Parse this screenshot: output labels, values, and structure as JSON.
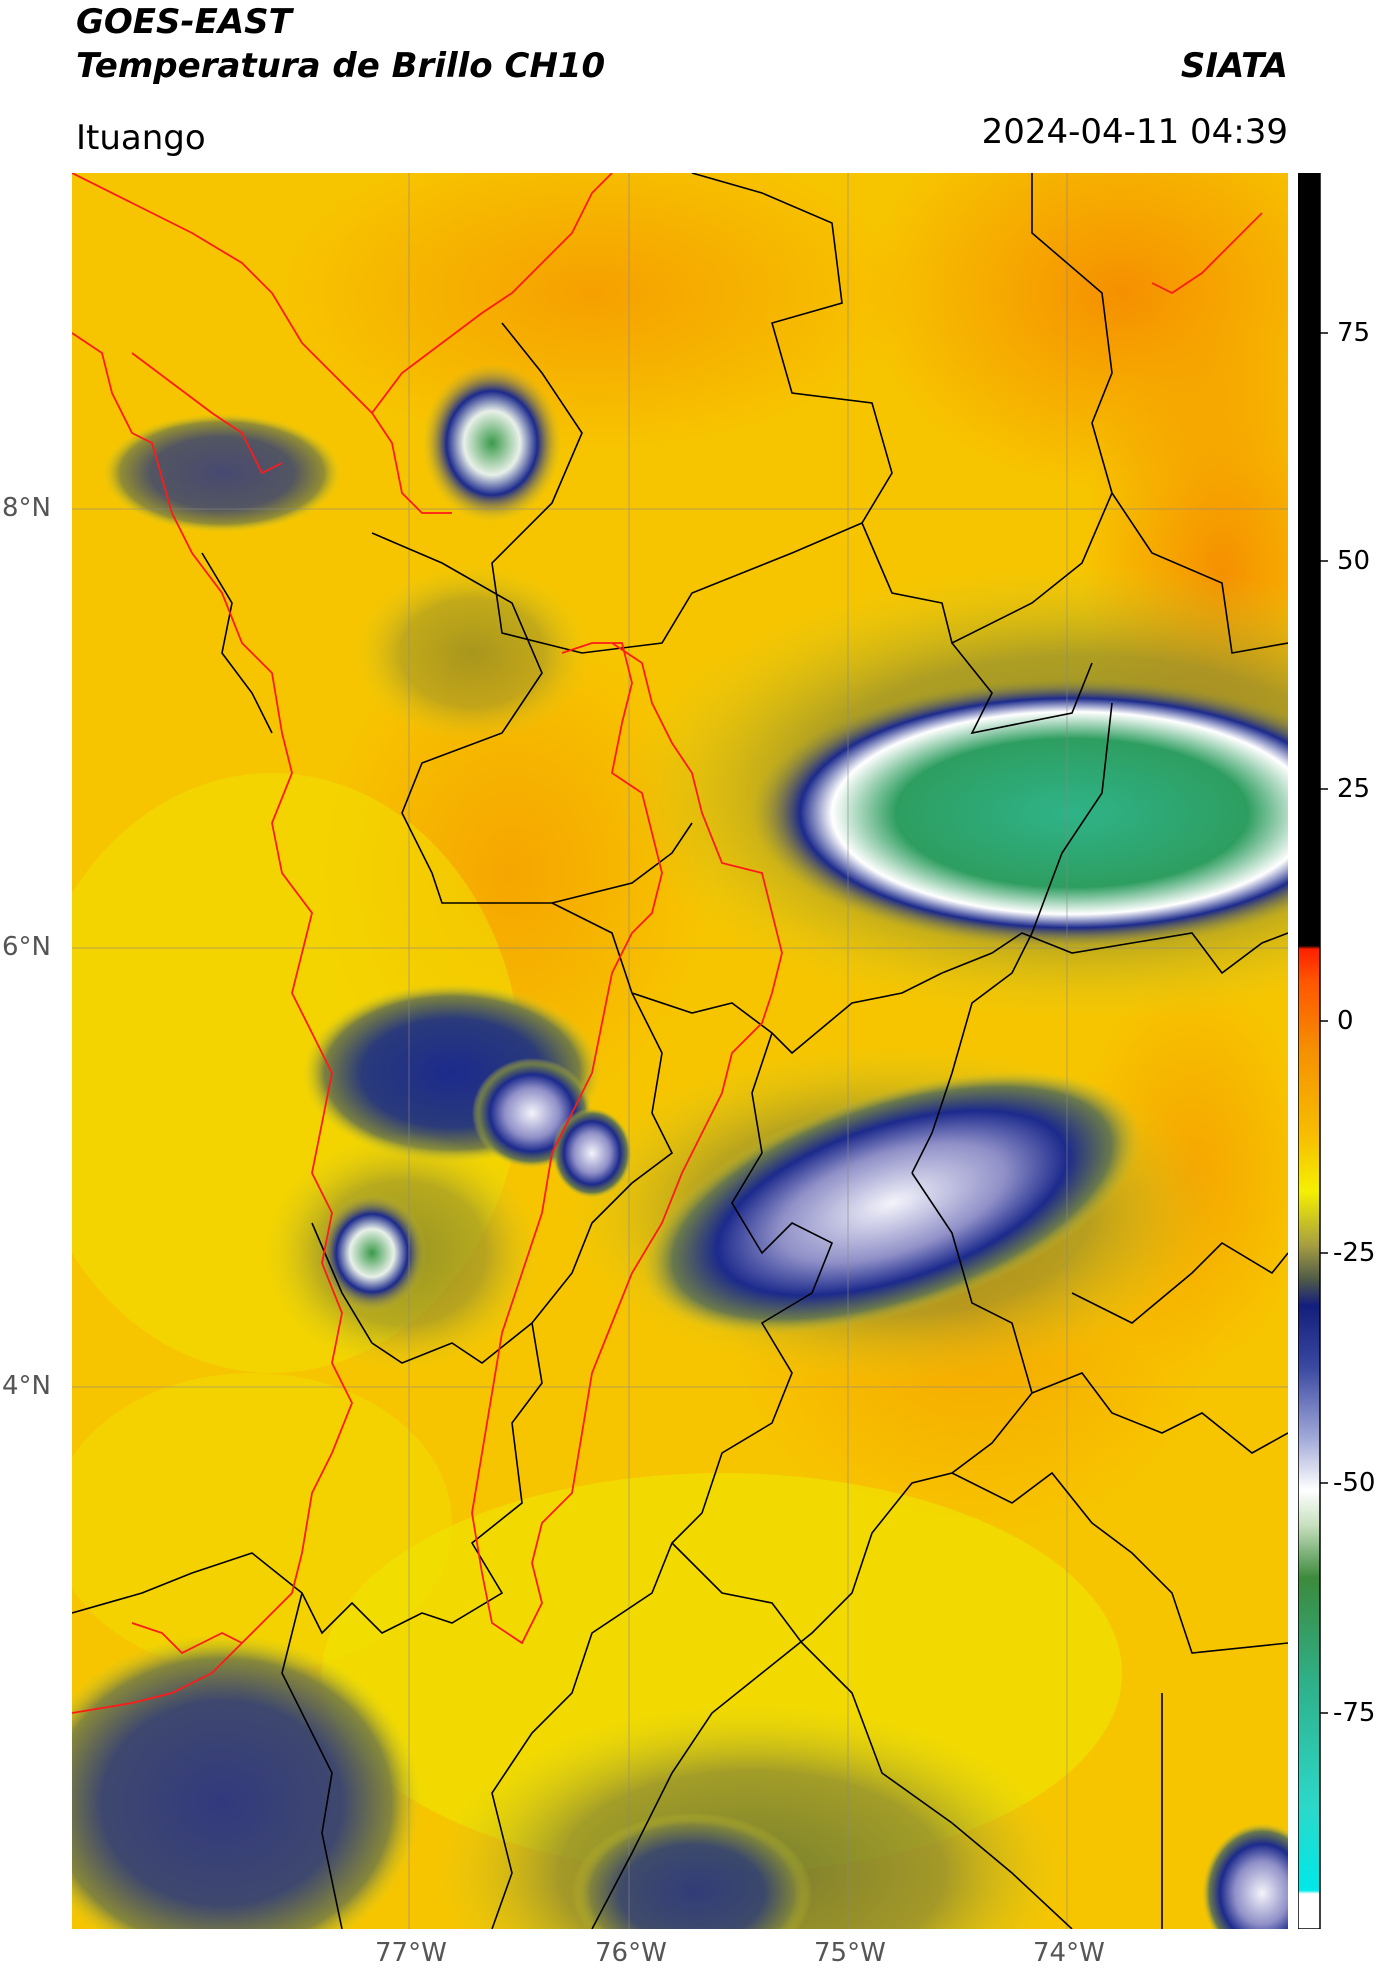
{
  "header": {
    "title": "GOES-EAST",
    "subtitle": "Temperatura de Brillo CH10",
    "organization": "SIATA",
    "region": "Ituango",
    "timestamp": "2024-04-11 04:39"
  },
  "map": {
    "lat_labels": [
      "8°N",
      "6°N",
      "4°N"
    ],
    "lon_labels": [
      "77°W",
      "76°W",
      "75°W",
      "74°W"
    ],
    "colors": {
      "background_warm": "#f6c400",
      "background_hot": "#f59a00",
      "cold_blue": "#1c2a8c",
      "coldest_green": "#2fa06a",
      "borders": "#000000",
      "departments_red": "#ff0000"
    }
  },
  "colorbar": {
    "ticks": [
      "75",
      "50",
      "25",
      "0",
      "-25",
      "-50",
      "-75"
    ]
  }
}
